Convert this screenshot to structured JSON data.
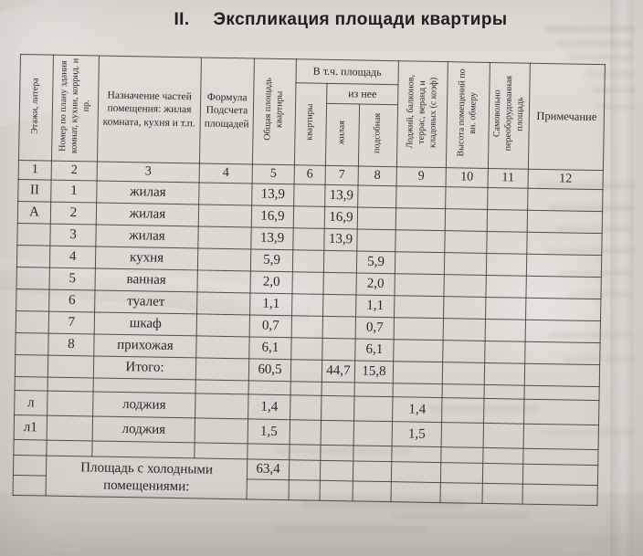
{
  "title": {
    "numeral": "II.",
    "text": "Экспликация площади квартиры"
  },
  "table": {
    "headers": {
      "col1": "Этажи, литера",
      "col2": "Номер по плану здания комнат, кухни, коррид. и пр.",
      "col3": "Назначение частей помещения: жилая комната, кухня и т.п.",
      "col4": "Формула Подсчета площадей",
      "col5": "Общая площадь квартиры",
      "group6_8": "В т.ч. площадь",
      "group7_8": "из нее",
      "col6": "квартиры",
      "col7": "жилая",
      "col8": "подсобная",
      "col9": "Лоджий, балконов, террас, веранд и кладовых (с коэф)",
      "col10": "Высота помещений по вн. обмеру",
      "col11": "Самовольно переоборудованная площадь",
      "col12": "Примечание"
    },
    "column_numbers": [
      "1",
      "2",
      "3",
      "4",
      "5",
      "6",
      "7",
      "8",
      "9",
      "10",
      "11",
      "12"
    ],
    "main_rows": [
      [
        "II",
        "1",
        "жилая",
        "",
        "13,9",
        "",
        "13,9",
        "",
        "",
        "",
        "",
        ""
      ],
      [
        "А",
        "2",
        "жилая",
        "",
        "16,9",
        "",
        "16,9",
        "",
        "",
        "",
        "",
        ""
      ],
      [
        "",
        "3",
        "жилая",
        "",
        "13,9",
        "",
        "13,9",
        "",
        "",
        "",
        "",
        ""
      ],
      [
        "",
        "4",
        "кухня",
        "",
        "5,9",
        "",
        "",
        "5,9",
        "",
        "",
        "",
        ""
      ],
      [
        "",
        "5",
        "ванная",
        "",
        "2,0",
        "",
        "",
        "2,0",
        "",
        "",
        "",
        ""
      ],
      [
        "",
        "6",
        "туалет",
        "",
        "1,1",
        "",
        "",
        "1,1",
        "",
        "",
        "",
        ""
      ],
      [
        "",
        "7",
        "шкаф",
        "",
        "0,7",
        "",
        "",
        "0,7",
        "",
        "",
        "",
        ""
      ],
      [
        "",
        "8",
        "прихожая",
        "",
        "6,1",
        "",
        "",
        "6,1",
        "",
        "",
        "",
        ""
      ],
      [
        "",
        "",
        "Итого:",
        "",
        "60,5",
        "",
        "44,7",
        "15,8",
        "",
        "",
        "",
        ""
      ]
    ],
    "loggia_rows": [
      [
        "л",
        "",
        "лоджия",
        "",
        "1,4",
        "",
        "",
        "",
        "1,4",
        "",
        "",
        ""
      ],
      [
        "л1",
        "",
        "лоджия",
        "",
        "1,5",
        "",
        "",
        "",
        "1,5",
        "",
        "",
        ""
      ]
    ],
    "bottom": {
      "label": "Площадь с холодными помещениями:",
      "value": "63,4"
    }
  },
  "watermark": {
    "label": "Домклик"
  },
  "colors": {
    "paper": "#ddd9d2",
    "table_line": "#38322c",
    "ink": "#2c2823",
    "watermark": "#c7c3bc",
    "bleed_text": "#8ea08c"
  }
}
